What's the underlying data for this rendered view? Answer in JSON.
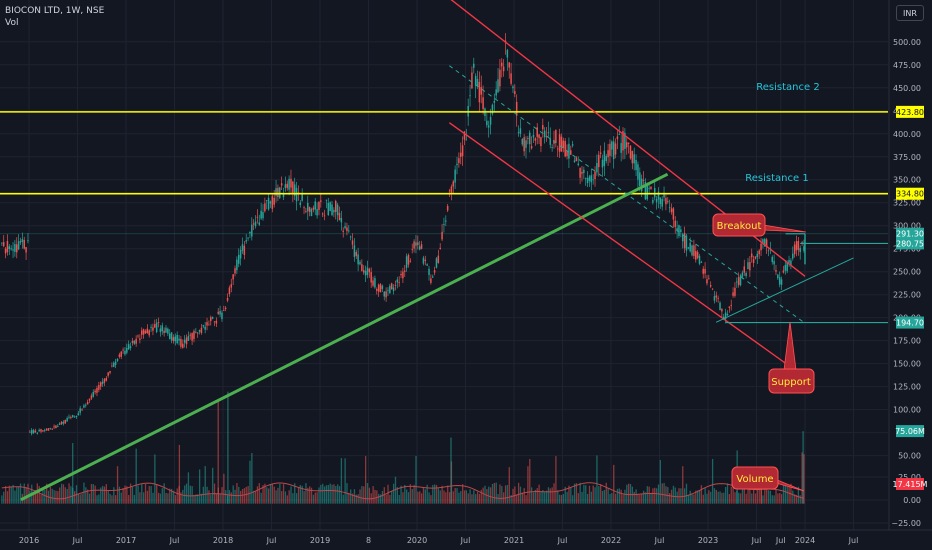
{
  "header": {
    "symbol_line": "BIOCON LTD, 1W, NSE",
    "vol_label": "Vol",
    "currency_button": "INR"
  },
  "chart_data": {
    "type": "candlestick",
    "title": "BIOCON LTD, 1W, NSE",
    "x_axis_ticks": [
      "2016",
      "Jul",
      "2017",
      "Jul",
      "2018",
      "Jul",
      "2019",
      "8",
      "2020",
      "Jul",
      "2021",
      "Jul",
      "2022",
      "Jul",
      "2023",
      "Jul",
      "Jul",
      "2024",
      "Jul"
    ],
    "price_axis_ticks": [
      "500.00",
      "475.00",
      "450.00",
      "425.00",
      "400.00",
      "375.00",
      "350.00",
      "325.00",
      "300.00",
      "275.00",
      "250.00",
      "225.00",
      "200.00",
      "175.00",
      "150.00",
      "125.00",
      "100.00",
      "75.00",
      "50.00",
      "25.00",
      "0.00",
      "−25.00"
    ],
    "ylim": [
      -25,
      510
    ],
    "grid": true,
    "price_path": [
      [
        "2016-01",
        75
      ],
      [
        "2016-04",
        80
      ],
      [
        "2016-07",
        95
      ],
      [
        "2016-10",
        128
      ],
      [
        "2016-12",
        155
      ],
      [
        "2017-03",
        182
      ],
      [
        "2017-05",
        190
      ],
      [
        "2017-08",
        172
      ],
      [
        "2017-11",
        192
      ],
      [
        "2018-01",
        205
      ],
      [
        "2018-03",
        265
      ],
      [
        "2018-06",
        318
      ],
      [
        "2018-09",
        345
      ],
      [
        "2018-12",
        318
      ],
      [
        "2019-03",
        320
      ],
      [
        "2019-06",
        258
      ],
      [
        "2019-09",
        225
      ],
      [
        "2019-11",
        245
      ],
      [
        "2020-01",
        285
      ],
      [
        "2020-03",
        238
      ],
      [
        "2020-05",
        330
      ],
      [
        "2020-07",
        395
      ],
      [
        "2020-08",
        470
      ],
      [
        "2020-10",
        405
      ],
      [
        "2020-12",
        490
      ],
      [
        "2021-02",
        392
      ],
      [
        "2021-05",
        400
      ],
      [
        "2021-08",
        382
      ],
      [
        "2021-10",
        345
      ],
      [
        "2021-12",
        375
      ],
      [
        "2022-03",
        395
      ],
      [
        "2022-05",
        340
      ],
      [
        "2022-08",
        325
      ],
      [
        "2022-10",
        285
      ],
      [
        "2022-12",
        262
      ],
      [
        "2023-03",
        200
      ],
      [
        "2023-05",
        242
      ],
      [
        "2023-08",
        285
      ],
      [
        "2023-10",
        240
      ],
      [
        "2023-12",
        278
      ]
    ],
    "volume_note": "weekly volume histogram with moving average line",
    "horizontal_levels": [
      {
        "label": "423.80",
        "price": 423.8,
        "color": "#ffff00"
      },
      {
        "label": "334.80",
        "price": 334.8,
        "color": "#ffff00"
      }
    ],
    "price_markers": [
      {
        "label": "291.30",
        "price": 291.3,
        "color": "#26a69a"
      },
      {
        "label": "280.75",
        "price": 280.75,
        "color": "#26a69a"
      },
      {
        "label": "194.70",
        "price": 194.7,
        "color": "#26a69a"
      }
    ],
    "volume_markers": [
      {
        "label": "75.06M",
        "value": 75.06,
        "color": "#26a69a"
      },
      {
        "label": "17.415M",
        "value": 17.415,
        "color": "#f23645"
      }
    ],
    "annotations": [
      {
        "text": "Resistance 2",
        "color": "#26c6da"
      },
      {
        "text": "Resistance 1",
        "color": "#26c6da"
      },
      {
        "text": "Breakout",
        "color": "#ffeb3b",
        "box": "#b22833"
      },
      {
        "text": "Support",
        "color": "#ffeb3b",
        "box": "#b22833"
      },
      {
        "text": "Volume",
        "color": "#ffeb3b",
        "box": "#b22833"
      }
    ],
    "trendlines": [
      {
        "name": "long-term support",
        "color": "#4caf50",
        "from": [
          "2015-12",
          2
        ],
        "to": [
          "2022-08",
          356
        ]
      },
      {
        "name": "channel upper",
        "color": "#f23645",
        "from": [
          "2020-02",
          568
        ],
        "to": [
          "2024-01",
          245
        ]
      },
      {
        "name": "channel lower",
        "color": "#f23645",
        "from": [
          "2020-05",
          412
        ],
        "to": [
          "2024-02",
          129
        ]
      },
      {
        "name": "channel mid",
        "color": "#26a69a",
        "from": [
          "2020-05",
          474
        ],
        "to": [
          "2024-01",
          194
        ]
      },
      {
        "name": "rising support",
        "color": "#26a69a",
        "from": [
          "2023-02",
          195
        ],
        "to": [
          "2024-07",
          265
        ]
      }
    ]
  },
  "colors": {
    "up": "#26a69a",
    "down": "#ef5350",
    "bg": "#131722",
    "grid": "#1f2331"
  }
}
